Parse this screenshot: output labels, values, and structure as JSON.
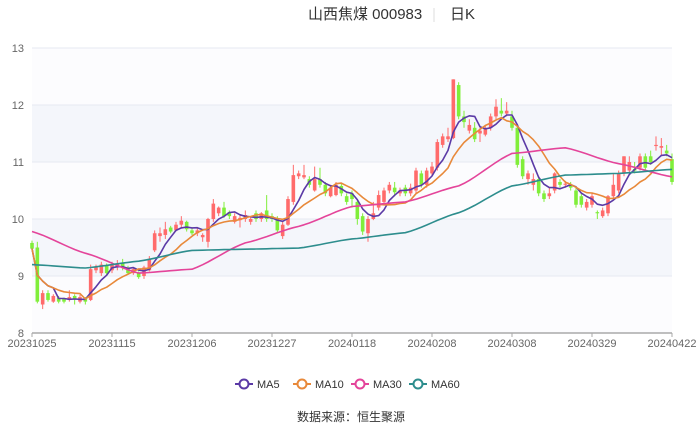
{
  "chart_data": {
    "type": "candlestick",
    "title": "山西焦煤 000983",
    "period": "日K",
    "source_label": "数据来源：",
    "source_name": "恒生聚源",
    "ylim": [
      8,
      13
    ],
    "yticks": [
      "8",
      "9",
      "10",
      "11",
      "12",
      "13"
    ],
    "xticks": [
      "20231025",
      "20231115",
      "20231206",
      "20231227",
      "20240118",
      "20240208",
      "20240308",
      "20240329",
      "20240422"
    ],
    "xtick_every": 15,
    "ohlc_format": [
      "open",
      "close",
      "low",
      "high"
    ],
    "ohlc": [
      [
        9.58,
        9.48,
        9.45,
        9.62
      ],
      [
        9.5,
        8.55,
        8.52,
        9.6
      ],
      [
        8.5,
        8.7,
        8.42,
        8.75
      ],
      [
        8.7,
        8.58,
        8.55,
        8.75
      ],
      [
        8.55,
        8.65,
        8.53,
        8.68
      ],
      [
        8.62,
        8.55,
        8.52,
        8.65
      ],
      [
        8.6,
        8.55,
        8.52,
        8.62
      ],
      [
        8.58,
        8.63,
        8.55,
        8.75
      ],
      [
        8.65,
        8.6,
        8.5,
        8.68
      ],
      [
        8.55,
        8.63,
        8.52,
        8.67
      ],
      [
        8.6,
        8.55,
        8.5,
        8.63
      ],
      [
        8.58,
        9.12,
        8.56,
        9.2
      ],
      [
        9.1,
        9.15,
        9.05,
        9.2
      ],
      [
        9.05,
        9.2,
        9.0,
        9.25
      ],
      [
        9.18,
        9.05,
        9.02,
        9.22
      ],
      [
        9.1,
        9.2,
        9.05,
        9.25
      ],
      [
        9.15,
        9.22,
        9.1,
        9.28
      ],
      [
        9.22,
        9.15,
        9.1,
        9.3
      ],
      [
        9.15,
        9.05,
        9.02,
        9.18
      ],
      [
        9.05,
        9.12,
        9.02,
        9.15
      ],
      [
        9.05,
        8.98,
        8.95,
        9.08
      ],
      [
        9.0,
        9.15,
        8.95,
        9.18
      ],
      [
        9.1,
        9.3,
        9.08,
        9.35
      ],
      [
        9.45,
        9.75,
        9.42,
        9.8
      ],
      [
        9.7,
        9.75,
        9.6,
        9.85
      ],
      [
        9.72,
        9.82,
        9.65,
        9.95
      ],
      [
        9.85,
        9.78,
        9.75,
        9.88
      ],
      [
        9.8,
        9.9,
        9.78,
        9.95
      ],
      [
        9.9,
        9.97,
        9.85,
        10.05
      ],
      [
        9.95,
        9.82,
        9.78,
        9.97
      ],
      [
        9.8,
        9.75,
        9.72,
        9.85
      ],
      [
        9.75,
        9.8,
        9.7,
        9.85
      ],
      [
        9.68,
        9.72,
        9.6,
        9.75
      ],
      [
        9.6,
        10.0,
        9.5,
        10.02
      ],
      [
        10.0,
        10.27,
        9.95,
        10.35
      ],
      [
        10.1,
        10.2,
        10.05,
        10.22
      ],
      [
        10.2,
        10.05,
        10.02,
        10.3
      ],
      [
        10.12,
        10.05,
        10.0,
        10.15
      ],
      [
        9.95,
        10.05,
        9.92,
        10.1
      ],
      [
        9.98,
        10.02,
        9.85,
        10.08
      ],
      [
        10.0,
        10.07,
        9.95,
        10.15
      ],
      [
        9.95,
        10.0,
        9.9,
        10.05
      ],
      [
        10.1,
        10.0,
        9.95,
        10.15
      ],
      [
        10.0,
        10.1,
        9.95,
        10.12
      ],
      [
        10.15,
        10.0,
        9.95,
        10.42
      ],
      [
        10.05,
        10.0,
        9.95,
        10.1
      ],
      [
        10.0,
        9.8,
        9.75,
        10.05
      ],
      [
        9.7,
        9.9,
        9.65,
        9.95
      ],
      [
        9.9,
        10.35,
        9.88,
        10.4
      ],
      [
        10.3,
        10.77,
        10.25,
        10.95
      ],
      [
        10.75,
        10.8,
        10.7,
        10.85
      ],
      [
        10.73,
        10.77,
        10.7,
        10.95
      ],
      [
        10.7,
        10.6,
        10.55,
        10.75
      ],
      [
        10.5,
        10.7,
        10.48,
        10.92
      ],
      [
        10.7,
        10.6,
        10.55,
        10.9
      ],
      [
        10.6,
        10.45,
        10.4,
        10.65
      ],
      [
        10.4,
        10.55,
        10.38,
        10.6
      ],
      [
        10.42,
        10.6,
        10.4,
        10.65
      ],
      [
        10.58,
        10.45,
        10.4,
        10.62
      ],
      [
        10.4,
        10.3,
        10.25,
        10.45
      ],
      [
        10.45,
        10.35,
        10.2,
        10.5
      ],
      [
        10.3,
        10.0,
        9.9,
        10.35
      ],
      [
        10.05,
        9.78,
        9.72,
        10.1
      ],
      [
        9.75,
        10.0,
        9.6,
        10.05
      ],
      [
        10.0,
        10.1,
        9.98,
        10.3
      ],
      [
        10.2,
        10.42,
        10.15,
        10.5
      ],
      [
        10.3,
        10.5,
        10.25,
        10.55
      ],
      [
        10.5,
        10.6,
        10.45,
        10.65
      ],
      [
        10.55,
        10.47,
        10.4,
        10.65
      ],
      [
        10.45,
        10.5,
        10.4,
        10.55
      ],
      [
        10.55,
        10.45,
        10.4,
        10.6
      ],
      [
        10.45,
        10.55,
        10.4,
        10.62
      ],
      [
        10.5,
        10.85,
        10.45,
        10.9
      ],
      [
        10.8,
        10.6,
        10.55,
        10.85
      ],
      [
        10.6,
        10.85,
        10.55,
        10.9
      ],
      [
        10.8,
        10.92,
        10.75,
        11.0
      ],
      [
        10.9,
        11.35,
        10.85,
        11.4
      ],
      [
        11.3,
        11.45,
        11.25,
        11.5
      ],
      [
        11.4,
        11.45,
        11.35,
        11.6
      ],
      [
        11.42,
        12.45,
        11.4,
        12.45
      ],
      [
        12.35,
        11.8,
        11.75,
        12.4
      ],
      [
        11.8,
        11.7,
        11.6,
        11.9
      ],
      [
        11.55,
        11.65,
        11.5,
        11.75
      ],
      [
        11.6,
        11.4,
        11.35,
        11.7
      ],
      [
        11.5,
        11.55,
        11.35,
        11.6
      ],
      [
        11.48,
        11.6,
        11.45,
        11.65
      ],
      [
        11.6,
        11.8,
        11.55,
        11.85
      ],
      [
        11.8,
        11.97,
        11.75,
        12.1
      ],
      [
        11.9,
        11.85,
        11.8,
        12.12
      ],
      [
        11.85,
        11.9,
        11.8,
        12.05
      ],
      [
        11.8,
        11.6,
        11.55,
        11.9
      ],
      [
        11.6,
        10.95,
        10.9,
        11.65
      ],
      [
        11.05,
        10.75,
        10.7,
        11.1
      ],
      [
        10.7,
        10.8,
        10.6,
        10.85
      ],
      [
        10.6,
        10.7,
        10.5,
        10.8
      ],
      [
        10.7,
        10.45,
        10.4,
        10.75
      ],
      [
        10.45,
        10.35,
        10.3,
        10.5
      ],
      [
        10.4,
        10.45,
        10.35,
        10.55
      ],
      [
        10.5,
        10.8,
        10.45,
        10.82
      ],
      [
        10.65,
        10.6,
        10.55,
        10.7
      ],
      [
        10.6,
        10.62,
        10.55,
        10.67
      ],
      [
        10.6,
        10.55,
        10.5,
        10.65
      ],
      [
        10.5,
        10.25,
        10.2,
        10.55
      ],
      [
        10.4,
        10.25,
        10.2,
        10.45
      ],
      [
        10.2,
        10.3,
        10.15,
        10.35
      ],
      [
        10.25,
        10.4,
        10.2,
        10.45
      ],
      [
        10.12,
        10.1,
        10.0,
        10.15
      ],
      [
        10.05,
        10.15,
        10.02,
        10.2
      ],
      [
        10.1,
        10.4,
        10.05,
        10.42
      ],
      [
        10.4,
        10.6,
        10.35,
        10.8
      ],
      [
        10.5,
        10.8,
        10.45,
        10.85
      ],
      [
        10.8,
        11.1,
        10.75,
        11.1
      ],
      [
        10.85,
        11.0,
        10.8,
        11.1
      ],
      [
        10.88,
        10.85,
        10.8,
        11.0
      ],
      [
        10.9,
        11.1,
        10.85,
        11.15
      ],
      [
        11.1,
        10.9,
        10.85,
        11.15
      ],
      [
        11.1,
        11.0,
        10.95,
        11.2
      ],
      [
        11.28,
        11.3,
        11.2,
        11.45
      ],
      [
        11.25,
        11.28,
        11.1,
        11.42
      ],
      [
        11.2,
        11.15,
        11.1,
        11.3
      ],
      [
        11.05,
        10.65,
        10.6,
        11.15
      ]
    ],
    "ma_sparse_every": 10,
    "series": [
      {
        "name": "MA5",
        "period": 5,
        "color": "#5b3aa6"
      },
      {
        "name": "MA10",
        "period": 10,
        "color": "#e8893a"
      },
      {
        "name": "MA30",
        "color": "#e4449a",
        "values": [
          9.78,
          9.4,
          9.05,
          9.12,
          9.58,
          9.87,
          10.22,
          10.3,
          10.58,
          11.15,
          11.25,
          10.97,
          10.74
        ]
      },
      {
        "name": "MA60",
        "color": "#2d8d8d",
        "values": [
          9.2,
          9.14,
          9.26,
          9.45,
          9.47,
          9.49,
          9.65,
          9.76,
          10.11,
          10.58,
          10.77,
          10.8,
          10.87
        ]
      }
    ],
    "up_color": "#ff6b6b",
    "down_color": "#80ee3a"
  }
}
